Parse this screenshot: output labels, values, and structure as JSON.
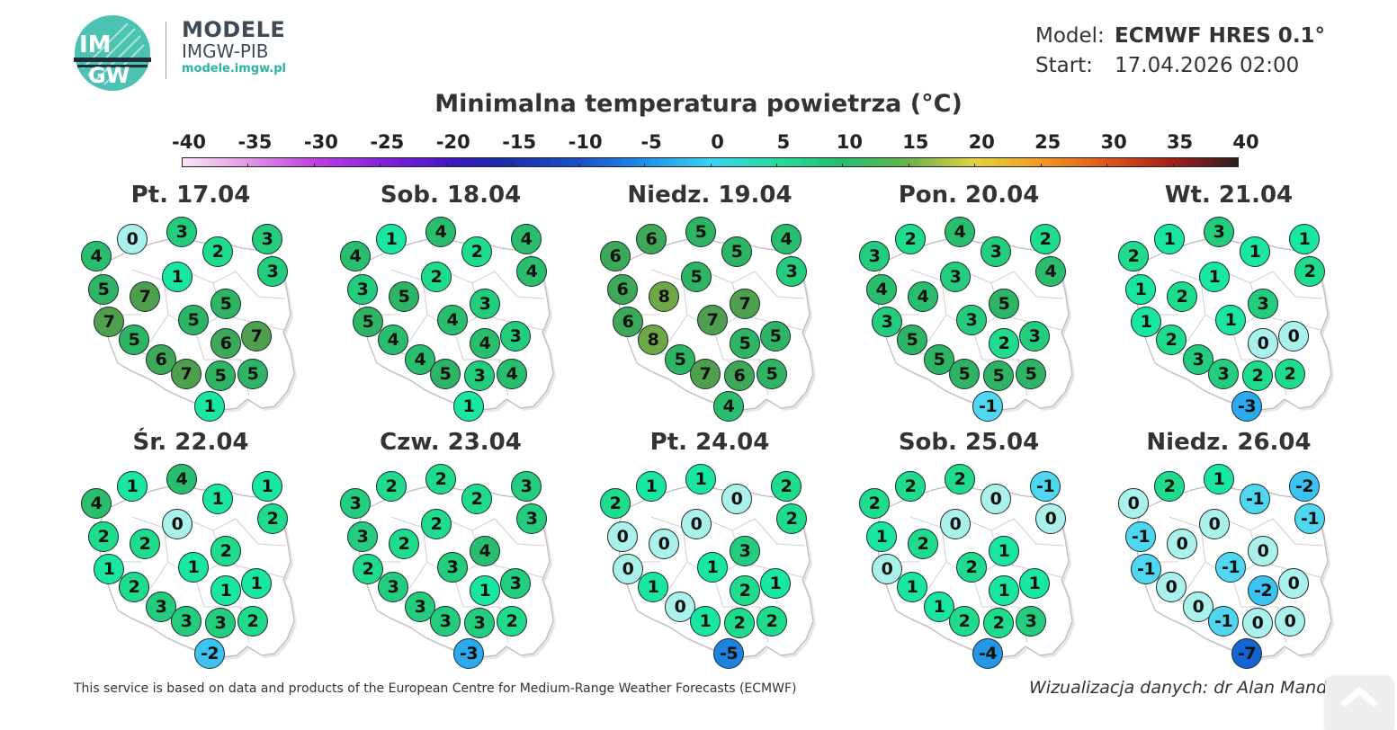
{
  "brand": {
    "logo_text_top": "IM",
    "logo_text_bottom": "GW",
    "title": "MODELE",
    "subtitle": "IMGW-PIB",
    "url": "modele.imgw.pl"
  },
  "model_info": {
    "model_label": "Model:",
    "model_value": "ECMWF HRES 0.1°",
    "start_label": "Start:",
    "start_value": "17.04.2026 02:00"
  },
  "chart_title": "Minimalna temperatura powietrza (°C)",
  "scale": {
    "labels": [
      "-40",
      "-35",
      "-30",
      "-25",
      "-20",
      "-15",
      "-10",
      "-5",
      "0",
      "5",
      "10",
      "15",
      "20",
      "25",
      "30",
      "35",
      "40"
    ],
    "min": -40,
    "max": 40
  },
  "colors": {
    "accent": "#2bb3a3",
    "border": "#1b2b2b",
    "map_fill": "#ffffff",
    "map_stroke": "#cfcfcf"
  },
  "days": [
    {
      "label": "Pt. 17.04",
      "values": [
        0,
        3,
        4,
        2,
        3,
        1,
        3,
        5,
        7,
        5,
        5,
        7,
        6,
        7,
        5,
        6,
        7,
        5,
        5,
        1
      ]
    },
    {
      "label": "Sob. 18.04",
      "values": [
        1,
        4,
        4,
        2,
        4,
        2,
        4,
        3,
        5,
        3,
        4,
        5,
        4,
        3,
        4,
        4,
        5,
        3,
        4,
        1
      ]
    },
    {
      "label": "Niedz. 19.04",
      "values": [
        6,
        5,
        6,
        5,
        4,
        5,
        3,
        6,
        8,
        7,
        7,
        6,
        5,
        5,
        8,
        5,
        7,
        6,
        5,
        4
      ]
    },
    {
      "label": "Pon. 20.04",
      "values": [
        2,
        4,
        3,
        3,
        2,
        3,
        4,
        4,
        4,
        5,
        3,
        3,
        2,
        3,
        5,
        5,
        5,
        5,
        5,
        -1
      ]
    },
    {
      "label": "Wt. 21.04",
      "values": [
        1,
        3,
        2,
        1,
        1,
        1,
        2,
        1,
        2,
        3,
        1,
        1,
        0,
        0,
        2,
        3,
        3,
        2,
        2,
        -3
      ]
    },
    {
      "label": "Śr. 22.04",
      "values": [
        1,
        4,
        4,
        1,
        1,
        0,
        2,
        2,
        2,
        2,
        1,
        1,
        1,
        1,
        2,
        3,
        3,
        3,
        2,
        -2
      ]
    },
    {
      "label": "Czw. 23.04",
      "values": [
        2,
        2,
        3,
        2,
        3,
        2,
        3,
        3,
        2,
        4,
        3,
        2,
        1,
        3,
        3,
        3,
        3,
        3,
        2,
        -3
      ]
    },
    {
      "label": "Pt. 24.04",
      "values": [
        1,
        1,
        2,
        0,
        2,
        0,
        2,
        0,
        0,
        3,
        1,
        0,
        2,
        1,
        1,
        0,
        1,
        2,
        2,
        -5
      ]
    },
    {
      "label": "Sob. 25.04",
      "values": [
        2,
        2,
        2,
        0,
        -1,
        0,
        0,
        1,
        2,
        1,
        2,
        0,
        1,
        1,
        1,
        1,
        2,
        2,
        3,
        -4
      ]
    },
    {
      "label": "Niedz. 26.04",
      "values": [
        2,
        1,
        0,
        -1,
        -2,
        0,
        -1,
        -1,
        0,
        0,
        -1,
        -1,
        -2,
        0,
        0,
        0,
        -1,
        0,
        0,
        -7
      ]
    }
  ],
  "footer": {
    "left": "This service is based on data and products of the European Centre for Medium-Range Weather Forecasts (ECMWF)",
    "right": "Wizualizacja danych: dr Alan Mandal"
  },
  "scroll_top": {
    "icon": "chevron-up-icon"
  }
}
